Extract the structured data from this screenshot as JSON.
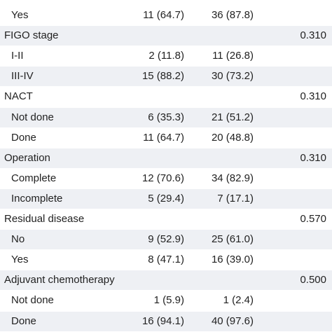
{
  "table": {
    "rows": [
      {
        "label": "Yes",
        "a": "11 (64.7)",
        "b": "36 (87.8)"
      },
      {
        "label": "FIGO stage",
        "p": "0.310"
      },
      {
        "label": "I-II",
        "a": "2 (11.8)",
        "b": "11 (26.8)"
      },
      {
        "label": "III-IV",
        "a": "15 (88.2)",
        "b": "30 (73.2)"
      },
      {
        "label": "NACT",
        "p": "0.310"
      },
      {
        "label": "Not done",
        "a": "6 (35.3)",
        "b": "21 (51.2)"
      },
      {
        "label": "Done",
        "a": "11 (64.7)",
        "b": "20 (48.8)"
      },
      {
        "label": "Operation",
        "p": "0.310"
      },
      {
        "label": "Complete",
        "a": "12 (70.6)",
        "b": "34 (82.9)"
      },
      {
        "label": "Incomplete",
        "a": "5 (29.4)",
        "b": "7 (17.1)"
      },
      {
        "label": "Residual disease",
        "p": "0.570"
      },
      {
        "label": "No",
        "a": "9 (52.9)",
        "b": "25 (61.0)"
      },
      {
        "label": "Yes",
        "a": "8 (47.1)",
        "b": "16 (39.0)"
      },
      {
        "label": "Adjuvant chemotherapy",
        "p": "0.500"
      },
      {
        "label": "Not done",
        "a": "1 (5.9)",
        "b": "1 (2.4)"
      },
      {
        "label": "Done",
        "a": "16 (94.1)",
        "b": "40 (97.6)"
      }
    ]
  }
}
